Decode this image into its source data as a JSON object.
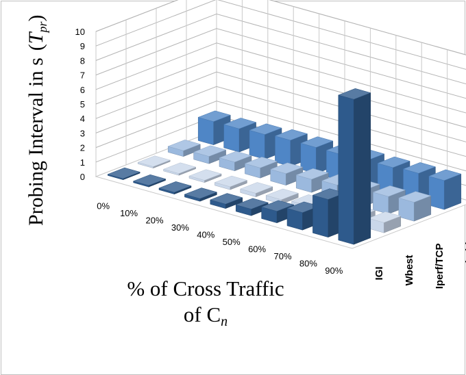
{
  "chart_data": {
    "type": "bar",
    "subtype": "3d-column",
    "title": "",
    "ylabel": "Probing Interval in s (T_pr)",
    "ylabel_parts": {
      "main": "Probing Interval in s",
      "symbol_base": "T",
      "symbol_sub": "pr"
    },
    "xlabel_lines": [
      "% of Cross Traffic",
      "of C"
    ],
    "xlabel_subscript": "n",
    "ylim": [
      0,
      10
    ],
    "yticks": [
      "0",
      "1",
      "2",
      "3",
      "4",
      "5",
      "6",
      "7",
      "8",
      "9",
      "10"
    ],
    "categories": [
      "0%",
      "10%",
      "20%",
      "30%",
      "40%",
      "50%",
      "60%",
      "70%",
      "80%",
      "90%"
    ],
    "series": [
      {
        "name": "IGI",
        "color": "#2e5a8c",
        "values": [
          0.08,
          0.1,
          0.12,
          0.18,
          0.3,
          0.45,
          0.8,
          1.2,
          2.6,
          10.0
        ]
      },
      {
        "name": "Wbest",
        "color": "#c9d7ea",
        "values": [
          0.1,
          0.12,
          0.15,
          0.2,
          0.25,
          0.3,
          0.4,
          0.5,
          0.6,
          0.7
        ]
      },
      {
        "name": "Iperf/TCP",
        "color": "#9bb9de",
        "values": [
          0.4,
          0.5,
          0.6,
          0.7,
          0.8,
          0.9,
          1.0,
          1.1,
          1.2,
          1.3
        ]
      },
      {
        "name": "Pathchirp",
        "color": "#4f86c6",
        "values": [
          1.6,
          1.6,
          1.7,
          1.8,
          1.8,
          1.8,
          1.9,
          1.9,
          2.0,
          2.0
        ]
      }
    ],
    "grid": true,
    "legend": "depth-axis"
  }
}
